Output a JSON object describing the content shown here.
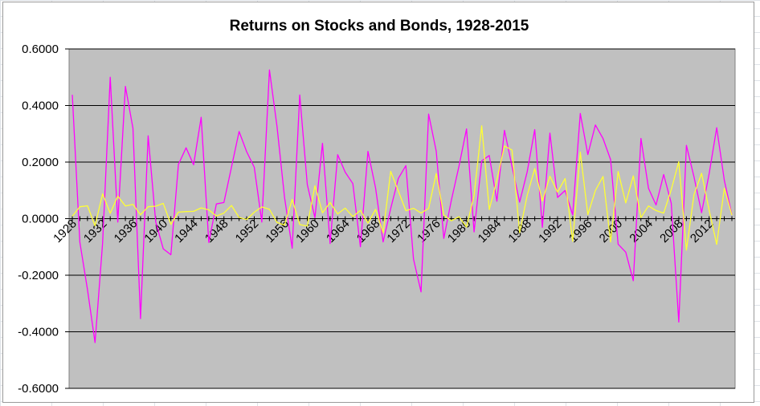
{
  "chart_data": {
    "type": "line",
    "title": "Returns on Stocks and Bonds, 1928-2015",
    "xlabel": "",
    "ylabel": "",
    "ylim": [
      -0.6,
      0.6
    ],
    "y_ticks": [
      "0.6000",
      "0.4000",
      "0.2000",
      "0.0000",
      "-0.2000",
      "-0.4000",
      "-0.6000"
    ],
    "x_tick_labels": [
      "1928",
      "1932",
      "1936",
      "1940",
      "1944",
      "1948",
      "1952",
      "1956",
      "1960",
      "1964",
      "1968",
      "1972",
      "1976",
      "1980",
      "1984",
      "1988",
      "1992",
      "1996",
      "2000",
      "2004",
      "2008",
      "2012"
    ],
    "plot_background": "#c0c0c0",
    "grid": true,
    "x": [
      1928,
      1929,
      1930,
      1931,
      1932,
      1933,
      1934,
      1935,
      1936,
      1937,
      1938,
      1939,
      1940,
      1941,
      1942,
      1943,
      1944,
      1945,
      1946,
      1947,
      1948,
      1949,
      1950,
      1951,
      1952,
      1953,
      1954,
      1955,
      1956,
      1957,
      1958,
      1959,
      1960,
      1961,
      1962,
      1963,
      1964,
      1965,
      1966,
      1967,
      1968,
      1969,
      1970,
      1971,
      1972,
      1973,
      1974,
      1975,
      1976,
      1977,
      1978,
      1979,
      1980,
      1981,
      1982,
      1983,
      1984,
      1985,
      1986,
      1987,
      1988,
      1989,
      1990,
      1991,
      1992,
      1993,
      1994,
      1995,
      1996,
      1997,
      1998,
      1999,
      2000,
      2001,
      2002,
      2003,
      2004,
      2005,
      2006,
      2007,
      2008,
      2009,
      2010,
      2011,
      2012,
      2013,
      2014,
      2015
    ],
    "series": [
      {
        "color": "#ff00ff",
        "values": [
          0.4381,
          -0.083,
          -0.2512,
          -0.4384,
          -0.0864,
          0.4998,
          -0.0119,
          0.4674,
          0.3194,
          -0.3534,
          0.2928,
          -0.011,
          -0.1067,
          -0.1277,
          0.1917,
          0.2506,
          0.1903,
          0.3582,
          -0.0843,
          0.052,
          0.057,
          0.183,
          0.3081,
          0.2368,
          0.1815,
          -0.0121,
          0.5256,
          0.326,
          0.0744,
          -0.1046,
          0.4372,
          0.1206,
          0.0034,
          0.2664,
          -0.0881,
          0.2261,
          0.1642,
          0.124,
          -0.0997,
          0.238,
          0.1081,
          -0.0824,
          0.0356,
          0.1422,
          0.1876,
          -0.1431,
          -0.259,
          0.37,
          0.2383,
          -0.0698,
          0.0651,
          0.1852,
          0.3174,
          -0.047,
          0.2042,
          0.2234,
          0.0615,
          0.3124,
          0.1849,
          0.0581,
          0.1654,
          0.3148,
          -0.0306,
          0.3023,
          0.0749,
          0.0997,
          0.0133,
          0.372,
          0.2268,
          0.331,
          0.2834,
          0.2089,
          -0.0903,
          -0.1185,
          -0.2197,
          0.2836,
          0.1074,
          0.0483,
          0.1561,
          0.0548,
          -0.3655,
          0.2594,
          0.1482,
          0.021,
          0.1589,
          0.3215,
          0.1352,
          0.0138
        ]
      },
      {
        "color": "#ffff33",
        "values": [
          0.0084,
          0.042,
          0.0454,
          -0.0256,
          0.0879,
          0.0186,
          0.0796,
          0.0447,
          0.0502,
          0.0138,
          0.0421,
          0.0441,
          0.054,
          -0.0202,
          0.0229,
          0.0249,
          0.0258,
          0.038,
          0.0313,
          0.0092,
          0.0195,
          0.0466,
          0.0043,
          -0.003,
          0.0227,
          0.0414,
          0.0329,
          -0.0134,
          -0.0226,
          0.068,
          -0.021,
          -0.0265,
          0.1164,
          0.0206,
          0.0569,
          0.0168,
          0.0373,
          0.0072,
          0.0291,
          -0.0158,
          0.0327,
          -0.0501,
          0.1675,
          0.0979,
          0.0282,
          0.0366,
          0.0199,
          0.0361,
          0.1598,
          0.0129,
          -0.0078,
          0.0067,
          -0.0299,
          0.082,
          0.3281,
          0.032,
          0.1373,
          0.2571,
          0.2428,
          -0.0496,
          0.0822,
          0.1769,
          0.0624,
          0.15,
          0.0936,
          0.1421,
          -0.0804,
          0.2348,
          0.0143,
          0.0994,
          0.1492,
          -0.0825,
          0.1666,
          0.0557,
          0.1512,
          0.0038,
          0.0449,
          0.0287,
          0.0196,
          0.1021,
          0.201,
          -0.1112,
          0.0846,
          0.1604,
          0.0297,
          -0.091,
          0.1075,
          0.0128
        ]
      }
    ]
  }
}
